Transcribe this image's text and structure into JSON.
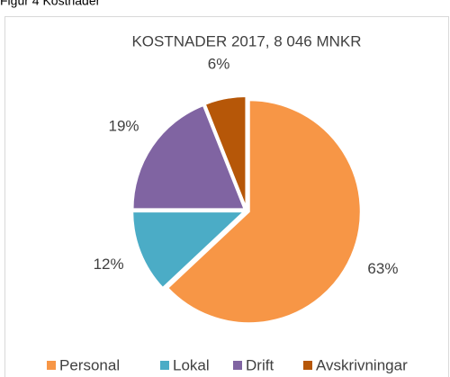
{
  "caption": "Figur 4 Kostnader",
  "chart_data": {
    "type": "pie",
    "title": "KOSTNADER 2017,  8 046 MNKR",
    "categories": [
      "Personal",
      "Lokal",
      "Drift",
      "Avskrivningar"
    ],
    "values": [
      63,
      12,
      19,
      6
    ],
    "value_labels": [
      "63%",
      "12%",
      "19%",
      "6%"
    ],
    "colors": [
      "#f79646",
      "#4bacc6",
      "#8064a2",
      "#b65708"
    ],
    "legend": "bottom"
  }
}
